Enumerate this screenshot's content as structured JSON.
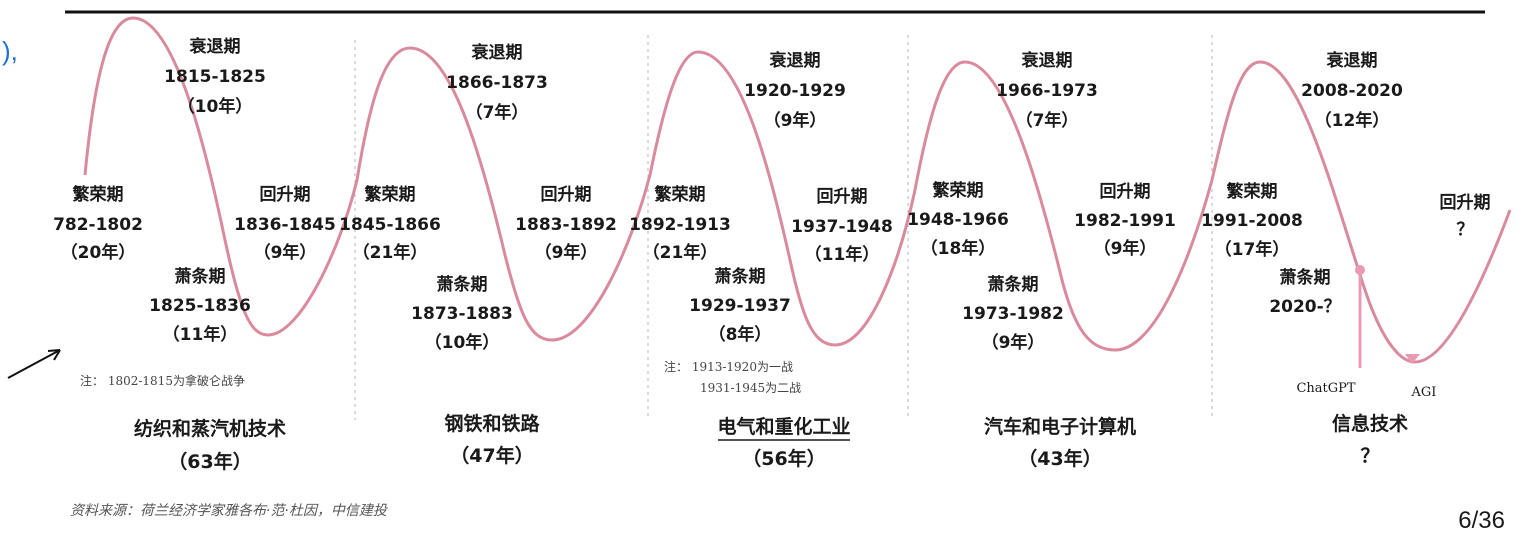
{
  "colors": {
    "wave": "#d98a9c",
    "marker": "#e89bb2",
    "link_blue": "#1e6fd9",
    "rule": "#111111"
  },
  "top_fragment": "),",
  "cycles": [
    {
      "prosperity": {
        "label": "繁荣期",
        "years": "782-1802",
        "dur": "（20年）"
      },
      "recession": {
        "label": "衰退期",
        "years": "1815-1825",
        "dur": "（10年）"
      },
      "depression": {
        "label": "萧条期",
        "years": "1825-1836",
        "dur": "（11年）"
      },
      "recovery": {
        "label": "回升期",
        "years": "1836-1845",
        "dur": "（9年）"
      },
      "note": [
        "注：  1802-1815为拿破仑战争"
      ],
      "tech": "纺织和蒸汽机技术",
      "total": "（63年）"
    },
    {
      "prosperity": {
        "label": "繁荣期",
        "years": "1845-1866",
        "dur": "（21年）"
      },
      "recession": {
        "label": "衰退期",
        "years": "1866-1873",
        "dur": "（7年）"
      },
      "depression": {
        "label": "萧条期",
        "years": "1873-1883",
        "dur": "（10年）"
      },
      "recovery": {
        "label": "回升期",
        "years": "1883-1892",
        "dur": "（9年）"
      },
      "tech": "钢铁和铁路",
      "total": "（47年）"
    },
    {
      "prosperity": {
        "label": "繁荣期",
        "years": "1892-1913",
        "dur": "（21年）"
      },
      "recession": {
        "label": "衰退期",
        "years": "1920-1929",
        "dur": "（9年）"
      },
      "depression": {
        "label": "萧条期",
        "years": "1929-1937",
        "dur": "（8年）"
      },
      "recovery": {
        "label": "回升期",
        "years": "1937-1948",
        "dur": "（11年）"
      },
      "note": [
        "注：  1913-1920为一战",
        "1931-1945为二战"
      ],
      "tech": "电气和重化工业",
      "total": "（56年）"
    },
    {
      "prosperity": {
        "label": "繁荣期",
        "years": "1948-1966",
        "dur": "（18年）"
      },
      "recession": {
        "label": "衰退期",
        "years": "1966-1973",
        "dur": "（7年）"
      },
      "depression": {
        "label": "萧条期",
        "years": "1973-1982",
        "dur": "（9年）"
      },
      "recovery": {
        "label": "回升期",
        "years": "1982-1991",
        "dur": "（9年）"
      },
      "tech": "汽车和电子计算机",
      "total": "（43年）"
    },
    {
      "prosperity": {
        "label": "繁荣期",
        "years": "1991-2008",
        "dur": "（17年）"
      },
      "recession": {
        "label": "衰退期",
        "years": "2008-2020",
        "dur": "（12年）"
      },
      "depression": {
        "label": "萧条期",
        "years": "2020-？"
      },
      "recovery": {
        "label": "回升期",
        "years": "？"
      },
      "markers": [
        "ChatGPT",
        "AGI"
      ],
      "tech": "信息技术",
      "total": "？"
    }
  ],
  "source": "资料来源：荷兰经济学家雅各布·范·杜因，中信建投",
  "page_number": "6/36"
}
